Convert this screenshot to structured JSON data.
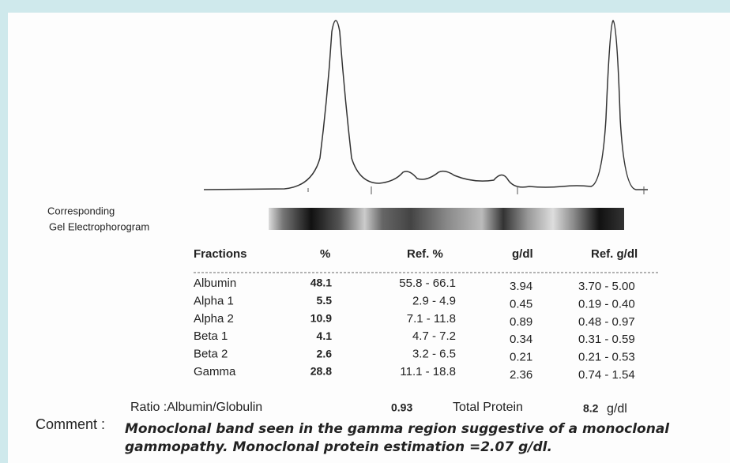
{
  "gel_label": [
    "Corresponding",
    "Gel Electrophorogram"
  ],
  "table": {
    "headers": [
      "Fractions",
      "%",
      "Ref. %",
      "g/dl",
      "Ref. g/dl"
    ],
    "rows": [
      [
        "Albumin",
        "48.1",
        "55.8 - 66.1",
        "3.94",
        "3.70 - 5.00"
      ],
      [
        "Alpha 1",
        "5.5",
        "2.9 - 4.9",
        "0.45",
        "0.19 - 0.40"
      ],
      [
        "Alpha 2",
        "10.9",
        "7.1 - 11.8",
        "0.89",
        "0.48 - 0.97"
      ],
      [
        "Beta 1",
        "4.1",
        "4.7 - 7.2",
        "0.34",
        "0.31 - 0.59"
      ],
      [
        "Beta 2",
        "2.6",
        "3.2 - 6.5",
        "0.21",
        "0.21 - 0.53"
      ],
      [
        "Gamma",
        "28.8",
        "11.1 - 18.8",
        "2.36",
        "0.74 - 1.54"
      ]
    ]
  },
  "ratio": {
    "label": "Ratio :Albumin/Globulin",
    "value": "0.93",
    "total_label": "Total Protein",
    "total_value": "8.2",
    "unit": "g/dl"
  },
  "comment": {
    "label": "Comment :",
    "lines": [
      "Monoclonal band seen  in the gamma region suggestive of a monoclonal",
      "gammopathy.  Monoclonal protein estimation =2.07 g/dl."
    ]
  }
}
